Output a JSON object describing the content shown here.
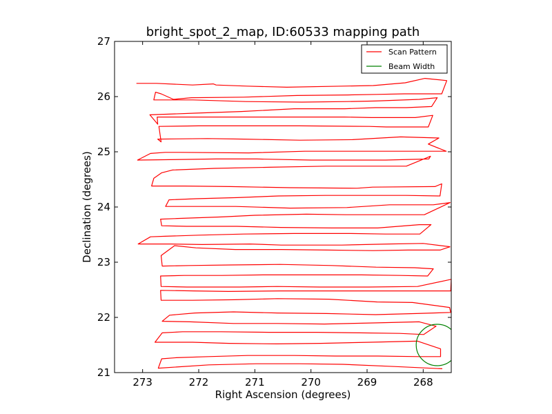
{
  "chart_data": {
    "type": "line",
    "title": "bright_spot_2_map, ID:60533 mapping path",
    "xlabel": "Right Ascension (degrees)",
    "ylabel": "Declination (degrees)",
    "xlim": [
      273.5,
      267.5
    ],
    "ylim": [
      21,
      27
    ],
    "x_ticks": [
      "273",
      "272",
      "271",
      "270",
      "269",
      "268"
    ],
    "y_ticks": [
      "21",
      "22",
      "23",
      "24",
      "25",
      "26",
      "27"
    ],
    "grid": false,
    "legend_position": "top-right",
    "legend": [
      {
        "label": "Scan Pattern",
        "color": "#ff0000",
        "kind": "line"
      },
      {
        "label": "Beam Width",
        "color": "#008000",
        "kind": "line"
      }
    ],
    "series": [
      {
        "name": "Scan Pattern",
        "color": "#ff0000",
        "x": [
          273.11,
          272.75,
          272.11,
          271.74,
          271.69,
          271.14,
          270.43,
          269.43,
          268.89,
          268.32,
          267.97,
          267.58,
          267.67,
          268.34,
          268.82,
          269.34,
          270.25,
          271.2,
          272.13,
          272.45,
          272.67,
          272.77,
          272.8,
          272.1,
          271.16,
          270.16,
          269.36,
          268.85,
          268.07,
          267.75,
          267.85,
          268.3,
          268.85,
          269.4,
          270.3,
          271.24,
          272.07,
          272.87,
          272.73,
          272.74,
          271.6,
          270.73,
          269.4,
          268.93,
          268.14,
          267.83,
          267.91,
          268.66,
          268.96,
          270.2,
          271.0,
          272.0,
          272.71,
          272.67,
          272.73,
          271.84,
          271.2,
          270.2,
          269.26,
          268.4,
          267.72,
          267.91,
          267.59,
          268.24,
          268.92,
          270.11,
          271.11,
          272.32,
          272.6,
          272.86,
          273.09,
          271.69,
          270.96,
          270.0,
          269.26,
          268.67,
          267.9,
          267.87,
          268.3,
          268.85,
          269.73,
          270.74,
          271.72,
          272.47,
          272.66,
          272.8,
          272.84,
          272.26,
          271.44,
          270.38,
          269.18,
          268.9,
          267.79,
          267.67,
          267.7,
          268.3,
          268.9,
          269.74,
          270.58,
          271.31,
          272.05,
          272.53,
          272.59,
          272.17,
          271.34,
          270.37,
          269.36,
          268.6,
          267.82,
          267.52,
          267.98,
          268.61,
          269.38,
          270.08,
          271.0,
          271.59,
          272.43,
          272.68,
          272.66,
          272.22,
          271.32,
          270.54,
          269.63,
          268.81,
          268.07,
          267.86,
          268.06,
          268.67,
          269.3,
          270.3,
          271.2,
          272.0,
          272.6,
          272.86,
          273.08,
          272.5,
          271.94,
          271.08,
          270.53,
          269.45,
          268.61,
          268.0,
          267.52
        ],
        "y": [
          26.24,
          26.24,
          26.21,
          26.23,
          26.21,
          26.19,
          26.17,
          26.19,
          26.2,
          26.25,
          26.33,
          26.29,
          26.05,
          26.05,
          26.04,
          26.03,
          26.02,
          25.99,
          25.98,
          25.95,
          26.05,
          26.08,
          25.94,
          25.94,
          25.91,
          25.9,
          25.91,
          25.92,
          25.95,
          25.98,
          25.82,
          25.8,
          25.8,
          25.78,
          25.78,
          25.73,
          25.7,
          25.67,
          25.5,
          25.63,
          25.63,
          25.63,
          25.63,
          25.62,
          25.62,
          25.66,
          25.45,
          25.45,
          25.46,
          25.47,
          25.47,
          25.47,
          25.46,
          25.18,
          25.23,
          25.24,
          25.23,
          25.21,
          25.22,
          25.27,
          25.25,
          25.14,
          25.01,
          25.01,
          25.01,
          25.01,
          24.98,
          24.99,
          24.99,
          24.97,
          24.85,
          24.87,
          24.87,
          24.85,
          24.85,
          24.85,
          24.87,
          24.92,
          24.74,
          24.74,
          24.74,
          24.72,
          24.7,
          24.67,
          24.62,
          24.52,
          24.38,
          24.38,
          24.37,
          24.35,
          24.34,
          24.36,
          24.37,
          24.42,
          24.2,
          24.21,
          24.21,
          24.21,
          24.2,
          24.17,
          24.15,
          24.13,
          24.01,
          24.01,
          24.01,
          23.98,
          23.99,
          24.04,
          24.04,
          24.08,
          23.86,
          23.86,
          23.86,
          23.87,
          23.85,
          23.82,
          23.79,
          23.78,
          23.66,
          23.65,
          23.65,
          23.63,
          23.62,
          23.62,
          23.68,
          23.68,
          23.51,
          23.51,
          23.52,
          23.52,
          23.51,
          23.49,
          23.47,
          23.46,
          23.33,
          23.33,
          23.32,
          23.33,
          23.31,
          23.31,
          23.33,
          23.34,
          23.28
        ]
      },
      {
        "name": "Scan Pattern",
        "color": "#ff0000",
        "x": [
          267.52,
          267.7,
          268.27,
          268.89,
          269.71,
          270.52,
          271.35,
          272.05,
          272.43,
          272.67,
          272.65,
          272.16,
          271.43,
          270.55,
          269.63,
          268.84,
          268.15,
          267.82,
          267.92,
          268.4,
          269.1,
          270.0,
          270.85,
          271.59,
          272.26,
          272.68,
          272.67,
          272.21,
          271.27,
          270.6,
          269.85,
          268.97,
          268.1,
          267.5,
          267.51,
          268.22,
          268.86,
          269.81,
          270.55,
          271.47,
          272.09,
          272.68,
          272.67,
          272.11,
          271.36,
          270.6,
          269.68,
          268.82,
          268.19,
          267.53,
          267.51,
          268.12,
          268.85,
          269.72,
          270.6,
          271.38,
          272.07,
          272.52,
          272.65,
          272.16,
          271.38,
          270.6,
          269.76,
          268.88,
          268.07,
          267.77,
          267.99,
          268.42,
          269.13,
          269.89,
          270.75,
          271.6,
          272.29,
          272.65,
          272.78,
          272.11,
          271.46,
          270.61,
          269.83,
          268.94,
          268.1,
          267.69,
          267.69,
          268.08,
          268.81,
          269.56,
          270.29,
          271.13,
          271.82,
          272.4,
          272.66,
          272.72,
          271.82,
          270.98,
          270.2,
          269.43,
          268.51,
          267.66
        ],
        "y": [
          23.28,
          23.22,
          23.22,
          23.21,
          23.22,
          23.23,
          23.23,
          23.26,
          23.3,
          23.12,
          22.93,
          22.94,
          22.95,
          22.96,
          22.94,
          22.91,
          22.9,
          22.88,
          22.75,
          22.76,
          22.77,
          22.77,
          22.77,
          22.76,
          22.76,
          22.75,
          22.56,
          22.55,
          22.55,
          22.56,
          22.55,
          22.55,
          22.56,
          22.69,
          22.48,
          22.48,
          22.48,
          22.48,
          22.48,
          22.47,
          22.48,
          22.49,
          22.31,
          22.31,
          22.32,
          22.34,
          22.33,
          22.28,
          22.27,
          22.18,
          22.09,
          22.07,
          22.05,
          22.07,
          22.08,
          22.1,
          22.08,
          22.04,
          21.93,
          21.92,
          21.89,
          21.89,
          21.88,
          21.9,
          21.92,
          21.84,
          21.69,
          21.71,
          21.72,
          21.73,
          21.73,
          21.74,
          21.74,
          21.72,
          21.55,
          21.55,
          21.53,
          21.52,
          21.53,
          21.55,
          21.57,
          21.43,
          21.29,
          21.29,
          21.3,
          21.3,
          21.31,
          21.31,
          21.29,
          21.27,
          21.25,
          21.08,
          21.14,
          21.16,
          21.16,
          21.15,
          21.11,
          21.07
        ]
      },
      {
        "name": "Beam Width",
        "color": "#008000",
        "type": "circle",
        "center": [
          267.75,
          21.5
        ],
        "radius": 0.375
      }
    ]
  }
}
